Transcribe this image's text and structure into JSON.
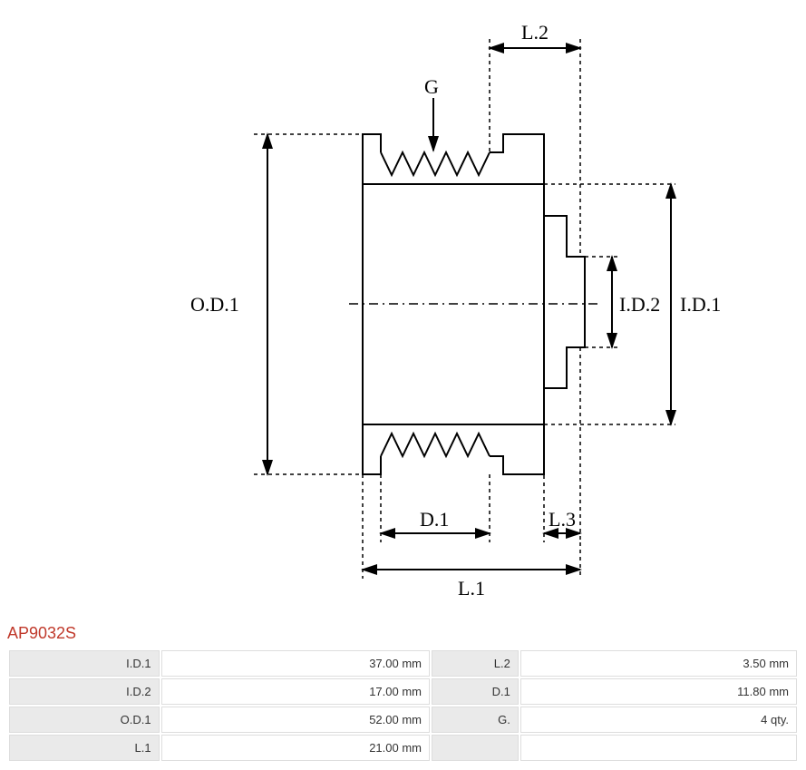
{
  "part_number": "AP9032S",
  "title_color": "#c0392b",
  "diagram": {
    "labels": {
      "G": "G",
      "OD1": "O.D.1",
      "ID1": "I.D.1",
      "ID2": "I.D.2",
      "L1": "L.1",
      "L2": "L.2",
      "L3": "L.3",
      "D1": "D.1"
    },
    "stroke_color": "#000000",
    "stroke_width": 2,
    "dash_pattern": "4 4",
    "background_color": "#ffffff",
    "label_font_family": "Georgia, serif",
    "label_fontsize": 22
  },
  "specs": {
    "rows": [
      {
        "label1": "I.D.1",
        "value1": "37.00 mm",
        "label2": "L.2",
        "value2": "3.50 mm"
      },
      {
        "label1": "I.D.2",
        "value1": "17.00 mm",
        "label2": "D.1",
        "value2": "11.80 mm"
      },
      {
        "label1": "O.D.1",
        "value1": "52.00 mm",
        "label2": "G.",
        "value2": "4 qty."
      },
      {
        "label1": "L.1",
        "value1": "21.00 mm",
        "label2": "",
        "value2": ""
      }
    ],
    "label_bg": "#eaeaea",
    "value_bg": "#ffffff",
    "border_color": "#dddddd",
    "text_color": "#333333",
    "fontsize": 13
  }
}
